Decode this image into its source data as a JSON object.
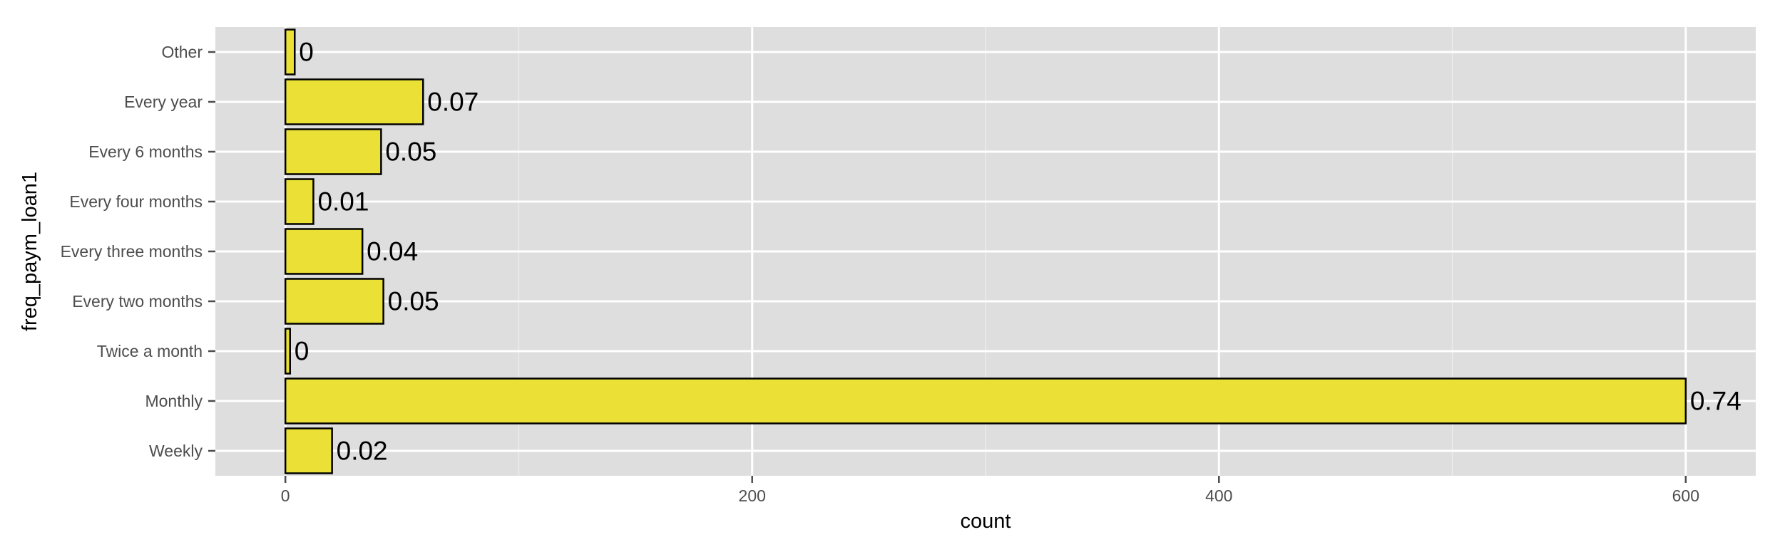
{
  "colors": {
    "panel_background": "#dedede",
    "grid_major": "#ffffff",
    "grid_minor": "#ebebeb",
    "bar_fill": "#ebe136",
    "bar_stroke": "#000000"
  },
  "chart_data": {
    "type": "bar",
    "orientation": "horizontal",
    "title": "",
    "xlabel": "count",
    "ylabel": "freq_paym_loan1",
    "xlim": [
      -30,
      630
    ],
    "x_ticks": [
      0,
      200,
      400,
      600
    ],
    "x_tick_labels": [
      "0",
      "200",
      "400",
      "600"
    ],
    "grid": true,
    "categories": [
      "Weekly",
      "Monthly",
      "Twice a month",
      "Every two months",
      "Every three months",
      "Every four months",
      "Every 6 months",
      "Every year",
      "Other "
    ],
    "values": [
      20,
      600,
      2,
      42,
      33,
      12,
      41,
      59,
      4
    ],
    "data_labels": [
      "0.02",
      "0.74",
      "0",
      "0.05",
      "0.04",
      "0.01",
      "0.05",
      "0.07",
      "0"
    ]
  }
}
